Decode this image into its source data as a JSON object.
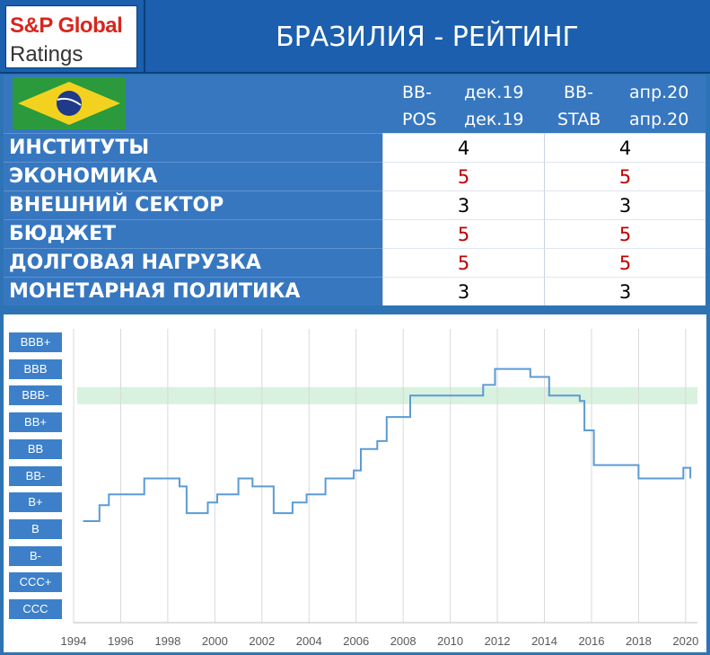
{
  "header": {
    "logo_line1": "S&P Global",
    "logo_line2": "Ratings",
    "title": "БРАЗИЛИЯ - РЕЙТИНГ"
  },
  "table": {
    "columns": [
      {
        "rating": "BB-",
        "outlook": "POS",
        "date_top": "дек.19",
        "date_bottom": "дек.19"
      },
      {
        "rating": "BB-",
        "outlook": "STAB",
        "date_top": "апр.20",
        "date_bottom": "апр.20"
      }
    ],
    "rows": [
      {
        "label": "ИНСТИТУТЫ",
        "values": [
          "4",
          "4"
        ],
        "color": "#000000"
      },
      {
        "label": "ЭКОНОМИКА",
        "values": [
          "5",
          "5"
        ],
        "color": "#c00000"
      },
      {
        "label": "ВНЕШНИЙ СЕКТОР",
        "values": [
          "3",
          "3"
        ],
        "color": "#000000"
      },
      {
        "label": "БЮДЖЕТ",
        "values": [
          "5",
          "5"
        ],
        "color": "#c00000"
      },
      {
        "label": "ДОЛГОВАЯ НАГРУЗКА",
        "values": [
          "5",
          "5"
        ],
        "color": "#c00000"
      },
      {
        "label": "МОНЕТАРНАЯ ПОЛИТИКА",
        "values": [
          "3",
          "3"
        ],
        "color": "#000000"
      }
    ]
  },
  "chart_data": {
    "type": "line",
    "step": true,
    "y_categories": [
      "CCC",
      "CCC+",
      "B-",
      "B",
      "B+",
      "BB-",
      "BB",
      "BB+",
      "BBB-",
      "BBB",
      "BBB+"
    ],
    "xlim": [
      1994,
      2020.5
    ],
    "x_ticks": [
      "1994",
      "1996",
      "1998",
      "2000",
      "2002",
      "2004",
      "2006",
      "2008",
      "2010",
      "2012",
      "2014",
      "2016",
      "2018",
      "2020"
    ],
    "highlight_band": "BBB-",
    "grid": "vertical",
    "colors": {
      "line": "#5b9bd5",
      "band": "#d8f2df",
      "rating_box": "#3d80c9"
    },
    "series": [
      {
        "points": [
          [
            1994.4,
            3.3
          ],
          [
            1995.1,
            3.3
          ],
          [
            1995.1,
            3.9
          ],
          [
            1995.5,
            3.9
          ],
          [
            1995.5,
            4.3
          ],
          [
            1997.0,
            4.3
          ],
          [
            1997.0,
            4.9
          ],
          [
            1998.5,
            4.9
          ],
          [
            1998.5,
            4.6
          ],
          [
            1998.8,
            4.6
          ],
          [
            1998.8,
            3.6
          ],
          [
            1999.7,
            3.6
          ],
          [
            1999.7,
            4.0
          ],
          [
            2000.1,
            4.0
          ],
          [
            2000.1,
            4.3
          ],
          [
            2001.0,
            4.3
          ],
          [
            2001.0,
            4.9
          ],
          [
            2001.6,
            4.9
          ],
          [
            2001.6,
            4.6
          ],
          [
            2002.5,
            4.6
          ],
          [
            2002.5,
            3.6
          ],
          [
            2003.3,
            3.6
          ],
          [
            2003.3,
            4.0
          ],
          [
            2003.9,
            4.0
          ],
          [
            2003.9,
            4.3
          ],
          [
            2004.7,
            4.3
          ],
          [
            2004.7,
            4.9
          ],
          [
            2005.9,
            4.9
          ],
          [
            2005.9,
            5.2
          ],
          [
            2006.2,
            5.2
          ],
          [
            2006.2,
            6.0
          ],
          [
            2006.9,
            6.0
          ],
          [
            2006.9,
            6.3
          ],
          [
            2007.3,
            6.3
          ],
          [
            2007.3,
            7.2
          ],
          [
            2008.3,
            7.2
          ],
          [
            2008.3,
            8.0
          ],
          [
            2011.4,
            8.0
          ],
          [
            2011.4,
            8.4
          ],
          [
            2011.9,
            8.4
          ],
          [
            2011.9,
            9.0
          ],
          [
            2013.4,
            9.0
          ],
          [
            2013.4,
            8.7
          ],
          [
            2014.2,
            8.7
          ],
          [
            2014.2,
            8.0
          ],
          [
            2015.5,
            8.0
          ],
          [
            2015.5,
            7.8
          ],
          [
            2015.7,
            7.8
          ],
          [
            2015.7,
            6.7
          ],
          [
            2016.1,
            6.7
          ],
          [
            2016.1,
            5.4
          ],
          [
            2018.0,
            5.4
          ],
          [
            2018.0,
            4.9
          ],
          [
            2019.9,
            4.9
          ],
          [
            2019.9,
            5.3
          ],
          [
            2020.2,
            5.3
          ],
          [
            2020.2,
            4.9
          ]
        ]
      }
    ]
  }
}
